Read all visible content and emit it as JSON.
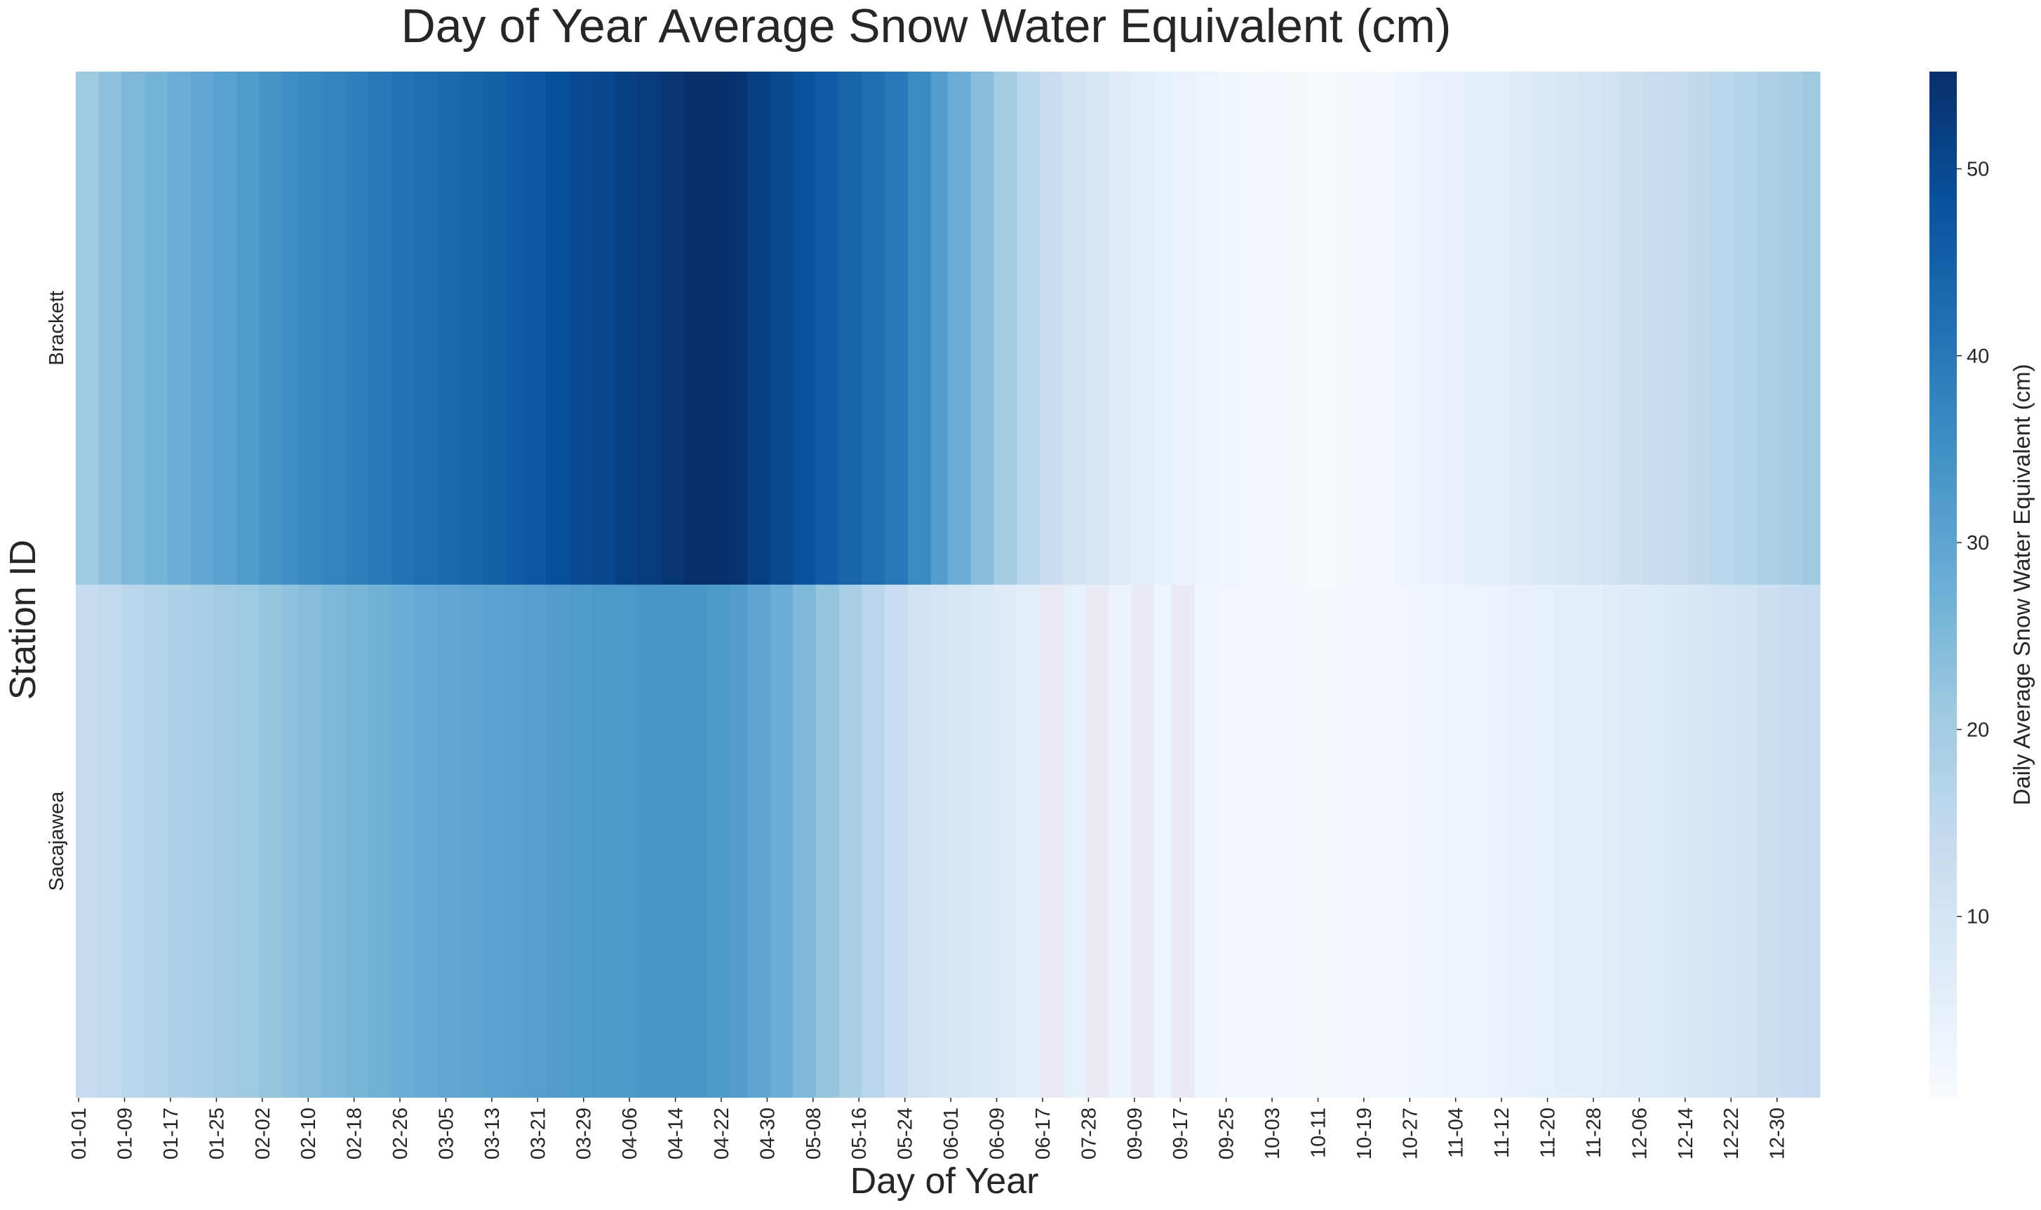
{
  "chart_data": {
    "type": "heatmap",
    "title": "Day of Year Average Snow Water Equivalent (cm)",
    "xlabel": "Day of Year",
    "ylabel": "Station ID",
    "rows": [
      "Brackett",
      "Sacajawea"
    ],
    "x_ticks": [
      "01-01",
      "01-09",
      "01-17",
      "01-25",
      "02-02",
      "02-10",
      "02-18",
      "02-26",
      "03-05",
      "03-13",
      "03-21",
      "03-29",
      "04-06",
      "04-14",
      "04-22",
      "04-30",
      "05-08",
      "05-16",
      "05-24",
      "06-01",
      "06-09",
      "06-17",
      "07-28",
      "09-09",
      "09-17",
      "09-25",
      "10-03",
      "10-11",
      "10-19",
      "10-27",
      "11-04",
      "11-12",
      "11-20",
      "11-28",
      "12-06",
      "12-14",
      "12-22",
      "12-30"
    ],
    "columns_per_tick": 8,
    "colormap": "Blues",
    "missing_color": "#eaeaf2",
    "colorbar": {
      "label": "Daily Average Snow Water Equivalent (cm)",
      "vmin": 0.3,
      "vmax": 55.2,
      "ticks": [
        10,
        20,
        30,
        40,
        50
      ]
    },
    "series": [
      {
        "name": "Brackett",
        "values": [
          21,
          23,
          25,
          26.5,
          28,
          29.5,
          31,
          32.5,
          34,
          35.5,
          36.5,
          37.5,
          38.5,
          40,
          41,
          42,
          43,
          44,
          45,
          46,
          47,
          48.5,
          49.5,
          50.5,
          52,
          53,
          54,
          55,
          55,
          54.5,
          52,
          50,
          48,
          46,
          44,
          42,
          40,
          36,
          32,
          28,
          24,
          20,
          16,
          13,
          11,
          9,
          7,
          6,
          5,
          4,
          3.5,
          2.5,
          2,
          1.5,
          1,
          0.8,
          1.2,
          1.4,
          2,
          3,
          4,
          4.5,
          5.5,
          6,
          7,
          8,
          9,
          10,
          11,
          12,
          13,
          14,
          15,
          16,
          17,
          18,
          19.5,
          21
        ]
      },
      {
        "name": "Sacajawea",
        "values": [
          14,
          15,
          16,
          17,
          18,
          19,
          20,
          21,
          22,
          23,
          24,
          25,
          26,
          27,
          28,
          29,
          29.5,
          30,
          30.5,
          31,
          31.5,
          32,
          32.5,
          33,
          33,
          33.5,
          33.5,
          33.5,
          33,
          32,
          30,
          28,
          25,
          22,
          19,
          16,
          13,
          11,
          10,
          9,
          8,
          7,
          6,
          null,
          5,
          null,
          4,
          null,
          3,
          null,
          2.5,
          2,
          1.8,
          1.5,
          1.3,
          1.2,
          1.3,
          1.5,
          1.8,
          2,
          2.5,
          3,
          3.5,
          4,
          4.5,
          5,
          5.5,
          6,
          6.5,
          7,
          7.5,
          8,
          9,
          10,
          11,
          12,
          13,
          14
        ]
      }
    ]
  }
}
